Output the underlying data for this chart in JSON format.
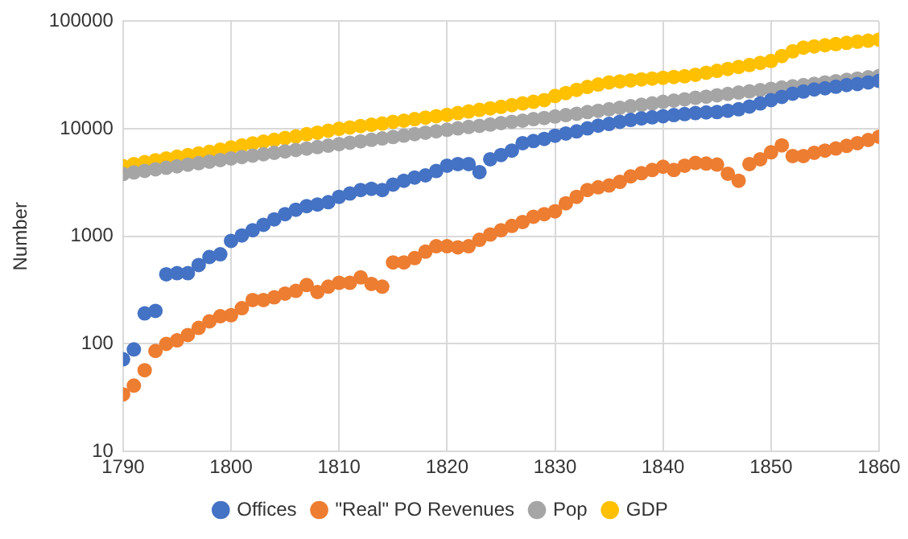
{
  "chart_data": {
    "type": "scatter",
    "ylabel": "Number",
    "log": "y",
    "grid": true,
    "legend": "bottom",
    "marker": "circle",
    "x": [
      1790,
      1791,
      1792,
      1793,
      1794,
      1795,
      1796,
      1797,
      1798,
      1799,
      1800,
      1801,
      1802,
      1803,
      1804,
      1805,
      1806,
      1807,
      1808,
      1809,
      1810,
      1811,
      1812,
      1813,
      1814,
      1815,
      1816,
      1817,
      1818,
      1819,
      1820,
      1821,
      1822,
      1823,
      1824,
      1825,
      1826,
      1827,
      1828,
      1829,
      1830,
      1831,
      1832,
      1833,
      1834,
      1835,
      1836,
      1837,
      1838,
      1839,
      1840,
      1841,
      1842,
      1843,
      1844,
      1845,
      1846,
      1847,
      1848,
      1849,
      1850,
      1851,
      1852,
      1853,
      1854,
      1855,
      1856,
      1857,
      1858,
      1859,
      1860
    ],
    "xlim": [
      1790,
      1860
    ],
    "xticks": [
      1790,
      1800,
      1810,
      1820,
      1830,
      1840,
      1850,
      1860
    ],
    "ylim": [
      10,
      100000
    ],
    "yticks": [
      10,
      100,
      1000,
      10000,
      100000
    ],
    "series": [
      {
        "name": "Offices",
        "color": "#4472c4",
        "values": [
          72,
          89,
          192,
          203,
          444,
          455,
          455,
          541,
          643,
          681,
          907,
          1020,
          1140,
          1280,
          1440,
          1610,
          1770,
          1910,
          1980,
          2080,
          2330,
          2500,
          2700,
          2770,
          2700,
          3030,
          3290,
          3520,
          3690,
          4050,
          4540,
          4700,
          4700,
          3960,
          5210,
          5710,
          6270,
          7350,
          7700,
          8050,
          8630,
          9040,
          9470,
          10100,
          10700,
          11100,
          11600,
          12100,
          12500,
          12800,
          13100,
          13400,
          13700,
          14000,
          14200,
          14300,
          14700,
          15200,
          16100,
          17200,
          18500,
          19800,
          21200,
          22200,
          23200,
          23800,
          24600,
          25500,
          26100,
          27000,
          27900
        ]
      },
      {
        "name": "\"Real\" PO Revenues",
        "color": "#ed7d31",
        "values": [
          34,
          41,
          57,
          86,
          100,
          108,
          121,
          141,
          162,
          181,
          185,
          215,
          256,
          256,
          271,
          294,
          311,
          353,
          304,
          341,
          370,
          370,
          415,
          361,
          341,
          573,
          573,
          628,
          721,
          809,
          809,
          791,
          809,
          929,
          1040,
          1140,
          1250,
          1360,
          1520,
          1610,
          1710,
          2030,
          2330,
          2700,
          2860,
          2970,
          3210,
          3610,
          3860,
          4140,
          4440,
          4140,
          4540,
          4810,
          4750,
          4650,
          3820,
          3290,
          4700,
          5210,
          6050,
          7020,
          5580,
          5580,
          5980,
          6270,
          6560,
          6940,
          7350,
          7870,
          8440
        ]
      },
      {
        "name": "Pop",
        "color": "#a5a5a5",
        "values": [
          3800,
          3930,
          4060,
          4200,
          4340,
          4480,
          4640,
          4790,
          4950,
          5120,
          5300,
          5460,
          5630,
          5800,
          5980,
          6170,
          6360,
          6550,
          6760,
          6970,
          7200,
          7420,
          7650,
          7890,
          8140,
          8390,
          8650,
          8920,
          9200,
          9490,
          9800,
          10100,
          10400,
          10650,
          10950,
          11300,
          11600,
          11900,
          12300,
          12600,
          13000,
          13400,
          13800,
          14300,
          14700,
          15200,
          15700,
          16200,
          16700,
          17200,
          17800,
          18300,
          18800,
          19400,
          19900,
          20500,
          21100,
          21700,
          22300,
          22900,
          23500,
          24200,
          24800,
          25500,
          26200,
          27000,
          27700,
          28500,
          29300,
          30100,
          30900
        ]
      },
      {
        "name": "GDP",
        "color": "#ffc000",
        "values": [
          4500,
          4700,
          4900,
          5100,
          5300,
          5500,
          5700,
          5900,
          6100,
          6400,
          6700,
          7000,
          7300,
          7600,
          7900,
          8200,
          8500,
          8900,
          9200,
          9600,
          10000,
          10300,
          10600,
          10900,
          11200,
          11600,
          11900,
          12300,
          12700,
          13100,
          13500,
          14000,
          14500,
          15000,
          15500,
          16000,
          16600,
          17200,
          17800,
          18500,
          20200,
          21500,
          23000,
          24500,
          25800,
          27000,
          27600,
          28200,
          28800,
          29300,
          29800,
          30300,
          30800,
          31800,
          33200,
          34600,
          36000,
          37600,
          39200,
          41000,
          42700,
          47500,
          52500,
          56900,
          58300,
          59800,
          61300,
          62900,
          64500,
          66000,
          67600
        ]
      }
    ]
  }
}
